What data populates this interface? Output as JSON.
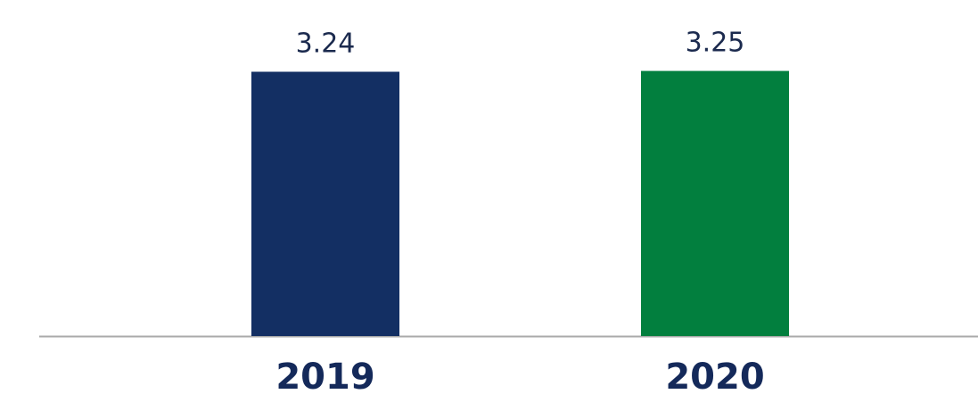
{
  "chart_data": {
    "type": "bar",
    "categories": [
      "2019",
      "2020"
    ],
    "values": [
      3.24,
      3.25
    ],
    "colors": [
      "#132f63",
      "#027f3e"
    ],
    "ylim": [
      0,
      3.3
    ]
  }
}
